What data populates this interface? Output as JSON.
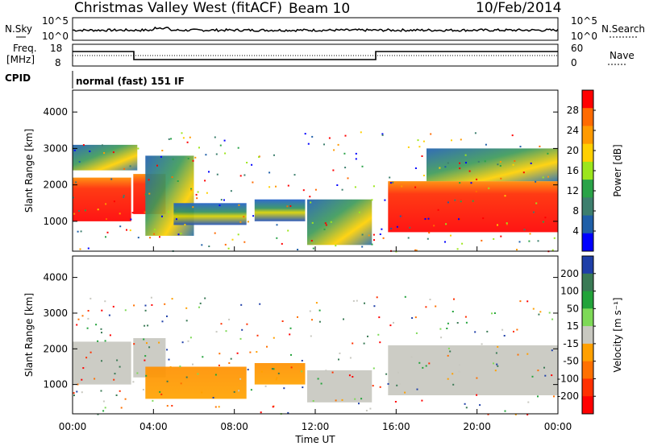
{
  "header": {
    "title": "Christmas Valley West (fitACF)",
    "beam": "Beam 10",
    "date": "10/Feb/2014"
  },
  "noise_panel": {
    "left_label": "N.Sky",
    "right_label": "N.Search",
    "ticks_left": [
      "10^5",
      "10^0"
    ],
    "ticks_right": [
      "10^5",
      "10^0"
    ]
  },
  "freq_panel": {
    "left_label_1": "Freq.",
    "left_label_2": "[MHz]",
    "right_label": "Nave",
    "ticks_left": [
      "18",
      "8"
    ],
    "ticks_right": [
      "60",
      "0"
    ]
  },
  "cpid": {
    "label": "CPID",
    "program": "normal (fast) 151 IF"
  },
  "x_axis": {
    "label": "Time UT",
    "ticks": [
      "00:00",
      "04:00",
      "08:00",
      "12:00",
      "16:00",
      "20:00",
      "00:00"
    ]
  },
  "chart_data": [
    {
      "type": "heatmap",
      "panel": "power",
      "ylabel": "Slant Range [km]",
      "ylim": [
        180,
        4600
      ],
      "xlim": [
        0,
        24
      ],
      "y_ticks": [
        "1000",
        "2000",
        "3000",
        "4000"
      ],
      "colorbar": {
        "label": "Power [dB]",
        "ticks": [
          "28",
          "24",
          "20",
          "16",
          "12",
          "8",
          "4"
        ],
        "colors": [
          "#ff0000",
          "#ff6a00",
          "#ff9a00",
          "#ffd000",
          "#9ce61c",
          "#2aa348",
          "#3d7f6e",
          "#1f5fa8",
          "#0000ff"
        ]
      },
      "regions": [
        {
          "t": [
            0.0,
            2.9
          ],
          "r": [
            1000,
            2200
          ],
          "level": "high"
        },
        {
          "t": [
            0.0,
            3.2
          ],
          "r": [
            2400,
            3100
          ],
          "level": "mid"
        },
        {
          "t": [
            3.0,
            4.6
          ],
          "r": [
            1200,
            2300
          ],
          "level": "high"
        },
        {
          "t": [
            3.6,
            6.0
          ],
          "r": [
            600,
            2800
          ],
          "level": "mid"
        },
        {
          "t": [
            5.0,
            8.6
          ],
          "r": [
            900,
            1500
          ],
          "level": "low"
        },
        {
          "t": [
            9.0,
            11.5
          ],
          "r": [
            1000,
            1600
          ],
          "level": "low"
        },
        {
          "t": [
            11.6,
            14.8
          ],
          "r": [
            350,
            1600
          ],
          "level": "mid"
        },
        {
          "t": [
            15.6,
            24.0
          ],
          "r": [
            700,
            2100
          ],
          "level": "high"
        },
        {
          "t": [
            17.5,
            24.0
          ],
          "r": [
            2100,
            3000
          ],
          "level": "mid"
        }
      ]
    },
    {
      "type": "heatmap",
      "panel": "velocity",
      "ylabel": "Slant Range [km]",
      "ylim": [
        180,
        4600
      ],
      "xlim": [
        0,
        24
      ],
      "y_ticks": [
        "1000",
        "2000",
        "3000",
        "4000"
      ],
      "colorbar": {
        "label": "Velocity [m s⁻¹]",
        "ticks": [
          "200",
          "100",
          "50",
          "15",
          "-15",
          "-50",
          "-100",
          "-200"
        ],
        "colors": [
          "#1f3fa8",
          "#3a7a55",
          "#22a33a",
          "#7ed957",
          "#c8c8c0",
          "#ffa000",
          "#ff7000",
          "#ff3000",
          "#ff0000"
        ]
      },
      "regions": [
        {
          "t": [
            0.0,
            2.9
          ],
          "r": [
            1000,
            2200
          ],
          "level": "grey"
        },
        {
          "t": [
            3.0,
            4.6
          ],
          "r": [
            1200,
            2300
          ],
          "level": "grey"
        },
        {
          "t": [
            3.6,
            8.6
          ],
          "r": [
            600,
            1500
          ],
          "level": "orange"
        },
        {
          "t": [
            9.0,
            11.5
          ],
          "r": [
            1000,
            1600
          ],
          "level": "orange"
        },
        {
          "t": [
            11.6,
            14.8
          ],
          "r": [
            500,
            1400
          ],
          "level": "grey"
        },
        {
          "t": [
            15.6,
            24.0
          ],
          "r": [
            700,
            2100
          ],
          "level": "grey"
        }
      ]
    }
  ]
}
